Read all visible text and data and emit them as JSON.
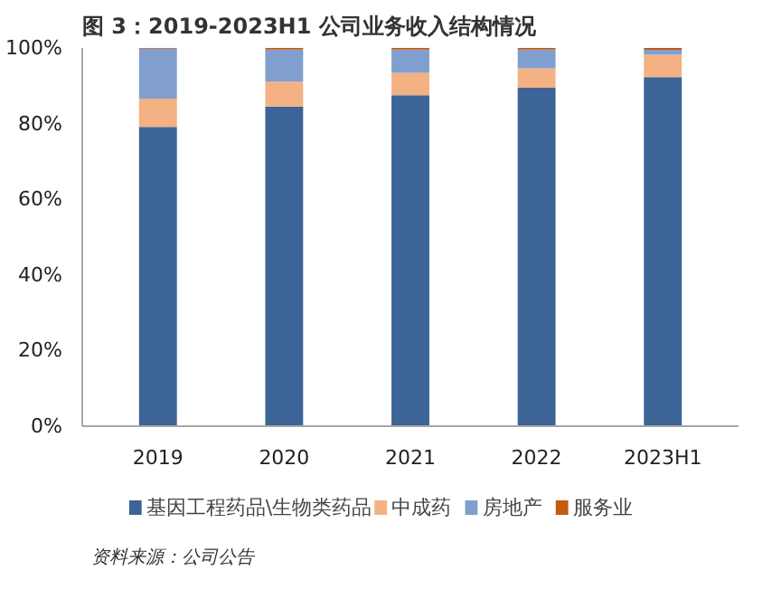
{
  "chart_data": {
    "type": "bar",
    "stacked": true,
    "title": "图 3：2019-2023H1 公司业务收入结构情况",
    "categories": [
      "2019",
      "2020",
      "2021",
      "2022",
      "2023H1"
    ],
    "series": [
      {
        "name": "基因工程药品\\生物类药品",
        "color": "#3c6496",
        "values": [
          79.1,
          84.5,
          87.5,
          89.5,
          92.3
        ]
      },
      {
        "name": "中成药",
        "color": "#f4b183",
        "values": [
          7.5,
          6.6,
          5.9,
          5.1,
          5.9
        ]
      },
      {
        "name": "房地产",
        "color": "#809fce",
        "values": [
          13.2,
          8.5,
          6.2,
          5.0,
          1.3
        ]
      },
      {
        "name": "服务业",
        "color": "#c55a11",
        "values": [
          0.2,
          0.4,
          0.4,
          0.4,
          0.5
        ]
      }
    ],
    "ylim": [
      0,
      100
    ],
    "yticks": [
      {
        "value": 0,
        "label": "0%"
      },
      {
        "value": 20,
        "label": "20%"
      },
      {
        "value": 40,
        "label": "40%"
      },
      {
        "value": 60,
        "label": "60%"
      },
      {
        "value": 80,
        "label": "80%"
      },
      {
        "value": 100,
        "label": "100%"
      }
    ],
    "grid": false,
    "legend": "bottom",
    "annotations": [
      "资料来源：公司公告"
    ]
  }
}
